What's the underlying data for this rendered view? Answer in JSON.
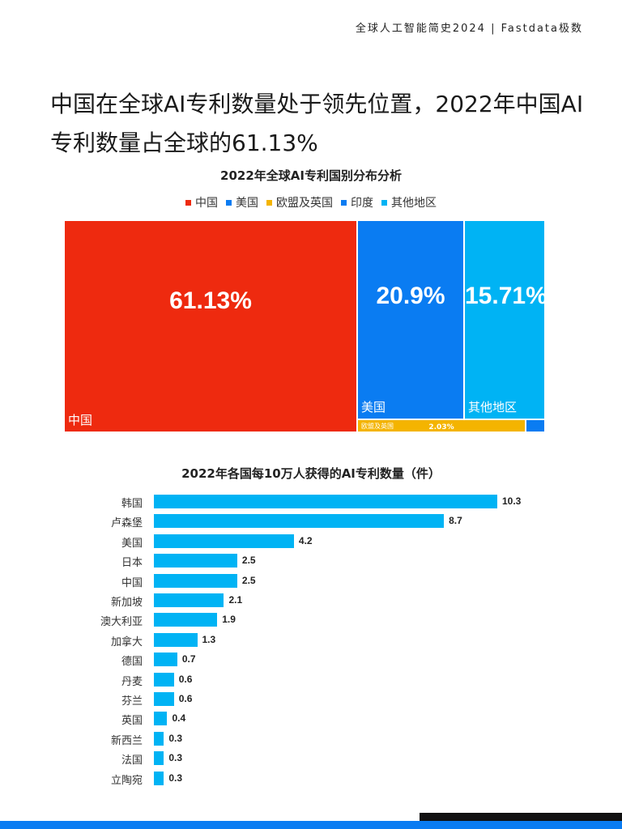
{
  "header": {
    "text": "全球人工智能简史2024 | Fastdata极数"
  },
  "headline": "中国在全球AI专利数量处于领先位置，2022年中国AI专利数量占全球的61.13%",
  "chart_data": [
    {
      "type": "treemap",
      "title": "2022年全球AI专利国别分布分析",
      "legend": [
        {
          "name": "中国",
          "color": "#ee2a0f"
        },
        {
          "name": "美国",
          "color": "#0a7cf2"
        },
        {
          "name": "欧盟及英国",
          "color": "#f4b400"
        },
        {
          "name": "印度",
          "color": "#0a7cf2"
        },
        {
          "name": "其他地区",
          "color": "#00b3f4"
        }
      ],
      "tiles": [
        {
          "name": "中国",
          "pct": 61.13,
          "label": "61.13%",
          "color": "#ee2a0f"
        },
        {
          "name": "美国",
          "pct": 20.9,
          "label": "20.9%",
          "color": "#0a7cf2"
        },
        {
          "name": "其他地区",
          "pct": 15.71,
          "label": "15.71%",
          "color": "#00b3f4"
        },
        {
          "name": "欧盟及英国",
          "pct": 2.03,
          "label": "2.03%",
          "color": "#f4b400"
        },
        {
          "name": "印度",
          "pct": null,
          "label": "",
          "color": "#0a7cf2"
        }
      ]
    },
    {
      "type": "bar",
      "orientation": "horizontal",
      "title": "2022年各国每10万人获得的AI专利数量（件）",
      "categories": [
        "韩国",
        "卢森堡",
        "美国",
        "日本",
        "中国",
        "新加坡",
        "澳大利亚",
        "加拿大",
        "德国",
        "丹麦",
        "芬兰",
        "英国",
        "新西兰",
        "法国",
        "立陶宛"
      ],
      "values": [
        10.3,
        8.7,
        4.2,
        2.5,
        2.5,
        2.1,
        1.9,
        1.3,
        0.7,
        0.6,
        0.6,
        0.4,
        0.3,
        0.3,
        0.3
      ],
      "value_labels": [
        "10.3",
        "8.7",
        "4.2",
        "2.5",
        "2.5",
        "2.1",
        "1.9",
        "1.3",
        "0.7",
        "0.6",
        "0.6",
        "0.4",
        "0.3",
        "0.3",
        "0.3"
      ],
      "xlim": [
        0,
        10.3
      ],
      "color": "#00b3f4"
    }
  ]
}
